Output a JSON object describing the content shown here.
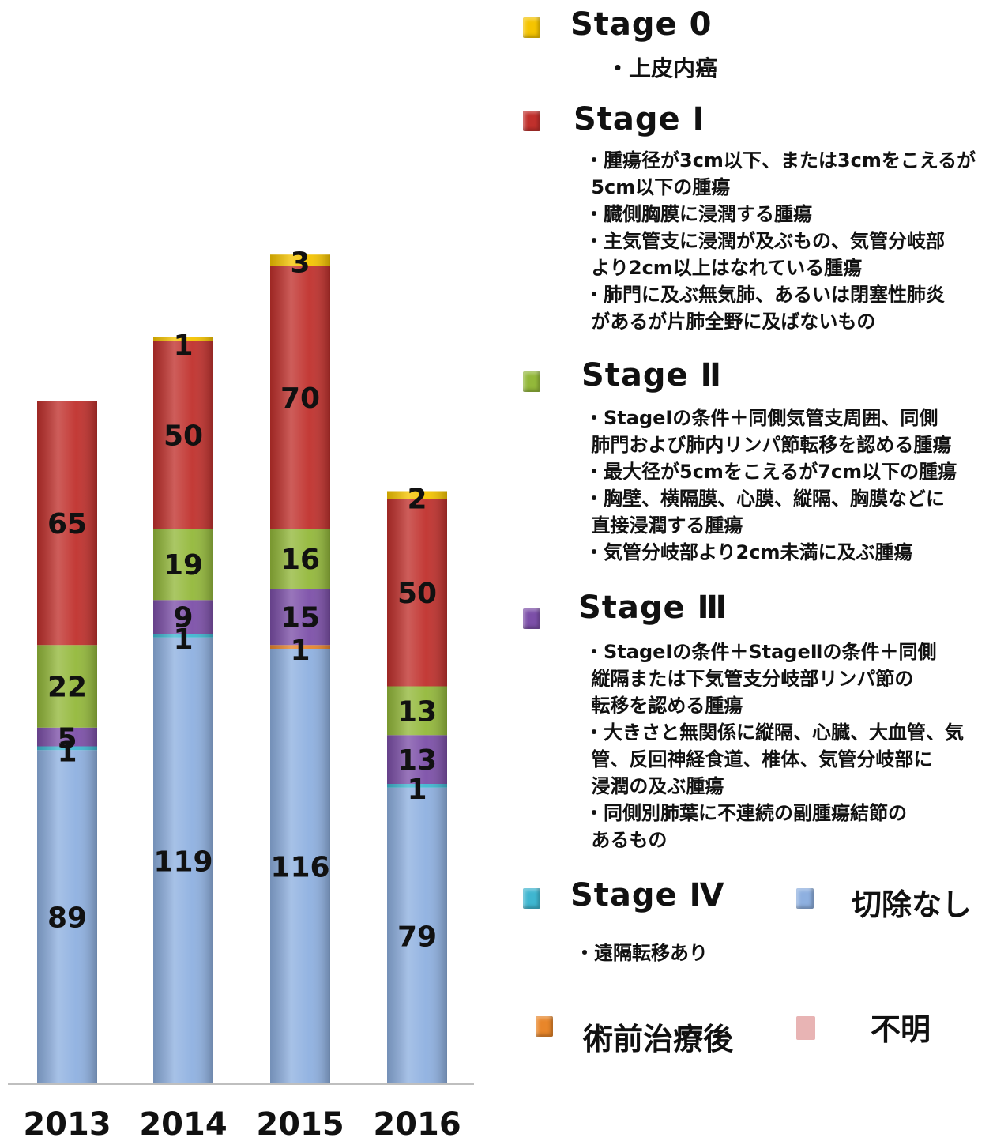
{
  "chart_data": {
    "type": "bar",
    "stacked": true,
    "categories": [
      "2013",
      "2014",
      "2015",
      "2016"
    ],
    "series": [
      {
        "name": "切除なし",
        "color": "#8EB0E0",
        "values": [
          89,
          119,
          116,
          79
        ]
      },
      {
        "name": "術前治療後",
        "color": "#E8862A",
        "values": [
          0,
          0,
          1,
          0
        ]
      },
      {
        "name": "Stage Ⅳ",
        "color": "#3FB6D0",
        "values": [
          1,
          1,
          0,
          1
        ]
      },
      {
        "name": "Stage Ⅲ",
        "color": "#7C4FA8",
        "values": [
          5,
          9,
          15,
          13
        ]
      },
      {
        "name": "Stage Ⅱ",
        "color": "#93B83A",
        "values": [
          22,
          19,
          16,
          13
        ]
      },
      {
        "name": "Stage Ⅰ",
        "color": "#C0302C",
        "values": [
          65,
          50,
          70,
          50
        ]
      },
      {
        "name": "Stage 0",
        "color": "#F5C400",
        "values": [
          0,
          1,
          3,
          2
        ]
      }
    ],
    "labels": [
      [
        {
          "series": 0,
          "text": "89"
        },
        {
          "series": 2,
          "text": "1"
        },
        {
          "series": 3,
          "text": "5"
        },
        {
          "series": 4,
          "text": "22"
        },
        {
          "series": 5,
          "text": "65"
        }
      ],
      [
        {
          "series": 0,
          "text": "119"
        },
        {
          "series": 2,
          "text": "1"
        },
        {
          "series": 3,
          "text": "9"
        },
        {
          "series": 4,
          "text": "19"
        },
        {
          "series": 5,
          "text": "50"
        },
        {
          "series": 6,
          "text": "1"
        }
      ],
      [
        {
          "series": 0,
          "text": "116"
        },
        {
          "series": 1,
          "text": "1"
        },
        {
          "series": 3,
          "text": "15"
        },
        {
          "series": 4,
          "text": "16"
        },
        {
          "series": 5,
          "text": "70"
        },
        {
          "series": 6,
          "text": "3"
        }
      ],
      [
        {
          "series": 0,
          "text": "79"
        },
        {
          "series": 2,
          "text": "1"
        },
        {
          "series": 3,
          "text": "13"
        },
        {
          "series": 4,
          "text": "13"
        },
        {
          "series": 5,
          "text": "50"
        },
        {
          "series": 6,
          "text": "2"
        }
      ]
    ],
    "ylim": [
      0,
      250
    ],
    "grid": false,
    "legend_placement": "right"
  },
  "legend": {
    "stage0": {
      "title": "Stage 0",
      "color": "#F5C400",
      "items": [
        "・上皮内癌"
      ]
    },
    "stage1": {
      "title": "Stage Ⅰ",
      "color": "#C0302C",
      "items": [
        "・腫瘍径が3cm以下、または3cmをこえるが\n 5cm以下の腫瘍",
        "・臓側胸膜に浸潤する腫瘍",
        "・主気管支に浸潤が及ぶもの、気管分岐部\n より2cm以上はなれている腫瘍",
        "・肺門に及ぶ無気肺、あるいは閉塞性肺炎\n があるが片肺全野に及ばないもの"
      ]
    },
    "stage2": {
      "title": "Stage Ⅱ",
      "color": "#93B83A",
      "items": [
        "・StageⅠの条件＋同側気管支周囲、同側\n 肺門および肺内リンパ節転移を認める腫瘍",
        "・最大径が5cmをこえるが7cm以下の腫瘍",
        "・胸壁、横隔膜、心膜、縦隔、胸膜などに\n 直接浸潤する腫瘍",
        "・気管分岐部より2cm未満に及ぶ腫瘍"
      ]
    },
    "stage3": {
      "title": "Stage Ⅲ",
      "color": "#7C4FA8",
      "items": [
        "・StageⅠの条件＋StageⅡの条件＋同側\n 縦隔または下気管支分岐部リンパ節の\n 転移を認める腫瘍",
        "・大きさと無関係に縦隔、心臓、大血管、気\n 管、反回神経食道、椎体、気管分岐部に\n 浸潤の及ぶ腫瘍",
        "・同側別肺葉に不連続の副腫瘍結節の\n あるもの"
      ]
    },
    "stage4": {
      "title": "Stage Ⅳ",
      "color": "#3FB6D0",
      "desc": "・遠隔転移あり"
    },
    "no_resection": {
      "title": "切除なし",
      "color": "#8EB0E0"
    },
    "post_neoadjuvant": {
      "title": "術前治療後",
      "color": "#E8862A"
    },
    "unknown": {
      "title": "不明",
      "color": "#E8B4B4"
    }
  }
}
